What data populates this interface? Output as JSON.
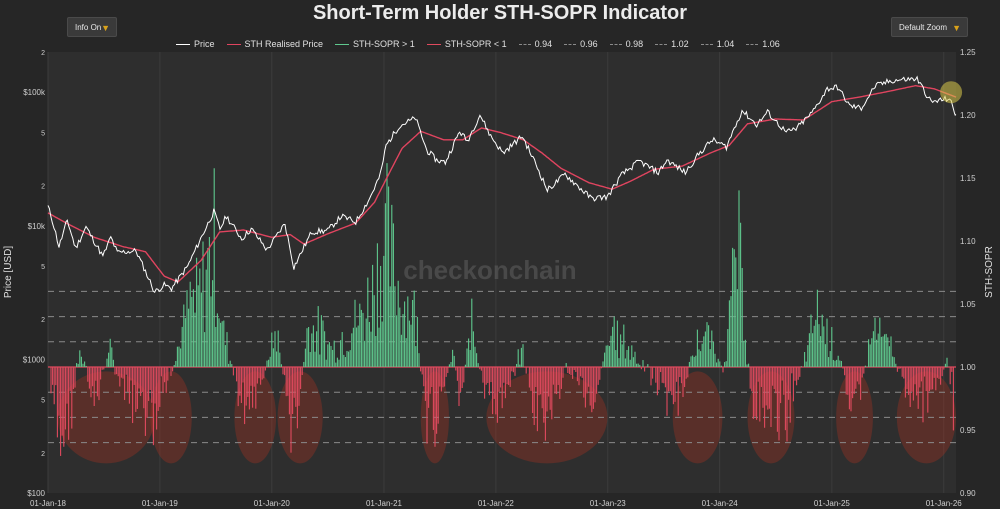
{
  "header": {
    "title": "Short-Term Holder STH-SOPR Indicator"
  },
  "controls": {
    "info_label": "Info On",
    "zoom_label": "Default Zoom"
  },
  "legend": {
    "price": "Price",
    "realised": "STH Realised Price",
    "sopr_up": "STH-SOPR > 1",
    "sopr_down": "STH-SOPR < 1",
    "levels": [
      "0.94",
      "0.96",
      "0.98",
      "1.02",
      "1.04",
      "1.06"
    ]
  },
  "colors": {
    "price": "#ffffff",
    "realised": "#e0445f",
    "sopr_up": "#5fc88e",
    "sopr_down": "#e04a5e",
    "highlight": "#c8321e",
    "latest": "#d8c84a",
    "plot_bg": "#2e2e2e"
  },
  "watermark": "checkonchain",
  "chart_data": {
    "type": "line",
    "title": "Short-Term Holder STH-SOPR Indicator",
    "x_range": [
      "2018-01-01",
      "2026-02-10"
    ],
    "x_ticks": [
      "01-Jan-18",
      "01-Jan-19",
      "01-Jan-20",
      "01-Jan-21",
      "01-Jan-22",
      "01-Jan-23",
      "01-Jan-24",
      "01-Jan-25",
      "01-Jan-26"
    ],
    "y_left": {
      "label": "Price [USD]",
      "scale": "log",
      "range": [
        100,
        200000
      ],
      "ticks": [
        {
          "v": 100,
          "t": "$100"
        },
        {
          "v": 200,
          "t": "2"
        },
        {
          "v": 500,
          "t": "5"
        },
        {
          "v": 1000,
          "t": "$1000"
        },
        {
          "v": 2000,
          "t": "2"
        },
        {
          "v": 5000,
          "t": "5"
        },
        {
          "v": 10000,
          "t": "$10k"
        },
        {
          "v": 20000,
          "t": "2"
        },
        {
          "v": 50000,
          "t": "5"
        },
        {
          "v": 100000,
          "t": "$100k"
        },
        {
          "v": 200000,
          "t": "2"
        }
      ]
    },
    "y_right": {
      "label": "STH-SOPR",
      "range": [
        0.9,
        1.25
      ],
      "ticks": [
        "0.90",
        "0.95",
        "1.00",
        "1.05",
        "1.10",
        "1.15",
        "1.20",
        "1.25"
      ]
    },
    "reference_levels": [
      0.94,
      0.96,
      0.98,
      1.0,
      1.02,
      1.04,
      1.06
    ],
    "series": [
      {
        "name": "Price",
        "points": [
          [
            "2018-01-01",
            14000
          ],
          [
            "2018-01-15",
            11000
          ],
          [
            "2018-02-06",
            7000
          ],
          [
            "2018-03-05",
            11000
          ],
          [
            "2018-04-01",
            6800
          ],
          [
            "2018-05-05",
            9800
          ],
          [
            "2018-06-29",
            5900
          ],
          [
            "2018-07-25",
            8200
          ],
          [
            "2018-08-15",
            6300
          ],
          [
            "2018-10-15",
            6500
          ],
          [
            "2018-11-20",
            4300
          ],
          [
            "2018-12-15",
            3200
          ],
          [
            "2019-01-15",
            3600
          ],
          [
            "2019-02-08",
            3400
          ],
          [
            "2019-04-02",
            5000
          ],
          [
            "2019-05-14",
            8000
          ],
          [
            "2019-06-26",
            12800
          ],
          [
            "2019-07-16",
            9500
          ],
          [
            "2019-08-06",
            11800
          ],
          [
            "2019-09-25",
            8000
          ],
          [
            "2019-10-26",
            9500
          ],
          [
            "2019-12-17",
            6600
          ],
          [
            "2020-02-13",
            10400
          ],
          [
            "2020-03-13",
            4900
          ],
          [
            "2020-05-10",
            9000
          ],
          [
            "2020-07-01",
            9200
          ],
          [
            "2020-08-15",
            11800
          ],
          [
            "2020-10-01",
            10700
          ],
          [
            "2020-11-15",
            16000
          ],
          [
            "2020-12-20",
            24000
          ],
          [
            "2021-01-08",
            40000
          ],
          [
            "2021-02-20",
            56000
          ],
          [
            "2021-04-14",
            64000
          ],
          [
            "2021-05-20",
            37000
          ],
          [
            "2021-06-22",
            31000
          ],
          [
            "2021-07-20",
            29800
          ],
          [
            "2021-09-05",
            51000
          ],
          [
            "2021-09-30",
            43000
          ],
          [
            "2021-11-10",
            68000
          ],
          [
            "2021-12-15",
            47000
          ],
          [
            "2022-01-24",
            35000
          ],
          [
            "2022-03-28",
            47000
          ],
          [
            "2022-05-12",
            28800
          ],
          [
            "2022-06-18",
            18500
          ],
          [
            "2022-08-15",
            24300
          ],
          [
            "2022-10-01",
            19300
          ],
          [
            "2022-11-09",
            16000
          ],
          [
            "2022-12-31",
            16500
          ],
          [
            "2023-02-15",
            24000
          ],
          [
            "2023-04-14",
            30500
          ],
          [
            "2023-06-15",
            25000
          ],
          [
            "2023-07-13",
            31000
          ],
          [
            "2023-09-11",
            25000
          ],
          [
            "2023-10-25",
            34500
          ],
          [
            "2023-12-08",
            44000
          ],
          [
            "2024-01-23",
            39000
          ],
          [
            "2024-03-14",
            73000
          ],
          [
            "2024-05-01",
            57000
          ],
          [
            "2024-06-05",
            71000
          ],
          [
            "2024-08-05",
            50000
          ],
          [
            "2024-09-06",
            53000
          ],
          [
            "2024-10-28",
            70000
          ],
          [
            "2024-12-17",
            106000
          ],
          [
            "2025-01-20",
            109000
          ],
          [
            "2025-02-28",
            79000
          ],
          [
            "2025-04-07",
            76000
          ],
          [
            "2025-05-22",
            111000
          ],
          [
            "2025-07-14",
            122000
          ],
          [
            "2025-08-14",
            124000
          ],
          [
            "2025-10-06",
            126000
          ],
          [
            "2025-11-21",
            84000
          ],
          [
            "2025-12-31",
            88000
          ],
          [
            "2026-01-20",
            90000
          ],
          [
            "2026-02-05",
            70000
          ],
          [
            "2026-02-10",
            68000
          ]
        ]
      },
      {
        "name": "STH Realised Price",
        "points": [
          [
            "2018-01-01",
            12500
          ],
          [
            "2018-03-01",
            10500
          ],
          [
            "2018-06-01",
            8200
          ],
          [
            "2018-09-01",
            7000
          ],
          [
            "2018-11-15",
            6400
          ],
          [
            "2019-01-15",
            4200
          ],
          [
            "2019-03-01",
            3800
          ],
          [
            "2019-05-15",
            5500
          ],
          [
            "2019-07-15",
            9000
          ],
          [
            "2019-10-01",
            9300
          ],
          [
            "2020-01-01",
            8200
          ],
          [
            "2020-03-01",
            8600
          ],
          [
            "2020-04-15",
            7300
          ],
          [
            "2020-07-01",
            8700
          ],
          [
            "2020-10-01",
            10500
          ],
          [
            "2020-12-01",
            15000
          ],
          [
            "2021-01-15",
            24000
          ],
          [
            "2021-03-01",
            38000
          ],
          [
            "2021-05-01",
            51000
          ],
          [
            "2021-07-15",
            44000
          ],
          [
            "2021-09-15",
            44000
          ],
          [
            "2021-11-15",
            54000
          ],
          [
            "2022-01-15",
            50000
          ],
          [
            "2022-04-01",
            44000
          ],
          [
            "2022-06-01",
            35000
          ],
          [
            "2022-08-01",
            27000
          ],
          [
            "2022-11-01",
            21000
          ],
          [
            "2023-01-15",
            18800
          ],
          [
            "2023-03-15",
            21500
          ],
          [
            "2023-06-01",
            26500
          ],
          [
            "2023-09-01",
            28000
          ],
          [
            "2023-12-01",
            35000
          ],
          [
            "2024-02-01",
            40000
          ],
          [
            "2024-04-01",
            58000
          ],
          [
            "2024-07-01",
            63000
          ],
          [
            "2024-10-01",
            62000
          ],
          [
            "2025-01-01",
            85000
          ],
          [
            "2025-04-01",
            92000
          ],
          [
            "2025-07-01",
            101000
          ],
          [
            "2025-10-01",
            112000
          ],
          [
            "2025-12-01",
            106000
          ],
          [
            "2026-02-10",
            92000
          ]
        ]
      },
      {
        "name": "STH-SOPR",
        "points": [
          [
            "2018-01-15",
            0.97
          ],
          [
            "2018-02-06",
            0.92
          ],
          [
            "2018-03-15",
            0.95
          ],
          [
            "2018-04-15",
            1.02
          ],
          [
            "2018-06-01",
            0.96
          ],
          [
            "2018-07-20",
            1.02
          ],
          [
            "2018-09-01",
            0.97
          ],
          [
            "2018-11-20",
            0.95
          ],
          [
            "2018-12-15",
            0.94
          ],
          [
            "2019-02-15",
            1.0
          ],
          [
            "2019-04-02",
            1.06
          ],
          [
            "2019-05-15",
            1.08
          ],
          [
            "2019-06-26",
            1.14
          ],
          [
            "2019-07-20",
            1.05
          ],
          [
            "2019-09-25",
            0.96
          ],
          [
            "2019-11-20",
            0.97
          ],
          [
            "2020-01-15",
            1.04
          ],
          [
            "2020-03-13",
            0.92
          ],
          [
            "2020-04-30",
            1.05
          ],
          [
            "2020-07-20",
            1.02
          ],
          [
            "2020-11-01",
            1.06
          ],
          [
            "2021-01-08",
            1.14
          ],
          [
            "2021-02-20",
            1.08
          ],
          [
            "2021-04-14",
            1.06
          ],
          [
            "2021-05-19",
            0.93
          ],
          [
            "2021-06-22",
            0.95
          ],
          [
            "2021-08-15",
            1.02
          ],
          [
            "2021-09-07",
            0.96
          ],
          [
            "2021-10-15",
            1.05
          ],
          [
            "2021-12-04",
            0.96
          ],
          [
            "2022-01-22",
            0.96
          ],
          [
            "2022-03-28",
            1.02
          ],
          [
            "2022-05-09",
            0.95
          ],
          [
            "2022-06-18",
            0.94
          ],
          [
            "2022-08-15",
            1.0
          ],
          [
            "2022-11-09",
            0.96
          ],
          [
            "2023-01-15",
            1.04
          ],
          [
            "2023-03-15",
            1.02
          ],
          [
            "2023-06-15",
            0.98
          ],
          [
            "2023-08-17",
            0.96
          ],
          [
            "2023-10-24",
            1.03
          ],
          [
            "2023-12-05",
            1.03
          ],
          [
            "2024-01-10",
            0.99
          ],
          [
            "2024-03-01",
            1.13
          ],
          [
            "2024-04-15",
            0.96
          ],
          [
            "2024-08-05",
            0.95
          ],
          [
            "2024-10-15",
            1.02
          ],
          [
            "2024-11-12",
            1.06
          ],
          [
            "2025-01-15",
            1.02
          ],
          [
            "2025-03-01",
            0.97
          ],
          [
            "2025-04-07",
            0.98
          ],
          [
            "2025-05-15",
            1.04
          ],
          [
            "2025-07-14",
            1.02
          ],
          [
            "2025-08-25",
            0.98
          ],
          [
            "2025-10-10",
            0.96
          ],
          [
            "2025-11-21",
            0.96
          ],
          [
            "2026-01-15",
            1.01
          ],
          [
            "2026-02-05",
            0.95
          ],
          [
            "2026-02-10",
            0.99
          ]
        ]
      }
    ],
    "highlighted_periods": [
      [
        "2018-02-01",
        "2018-12-15"
      ],
      [
        "2018-12-01",
        "2019-04-15"
      ],
      [
        "2019-09-01",
        "2020-01-15"
      ],
      [
        "2020-01-20",
        "2020-06-15"
      ],
      [
        "2021-05-01",
        "2021-08-01"
      ],
      [
        "2021-12-01",
        "2022-12-31"
      ],
      [
        "2023-08-01",
        "2024-01-10"
      ],
      [
        "2024-04-01",
        "2024-09-01"
      ],
      [
        "2025-01-15",
        "2025-05-15"
      ],
      [
        "2025-08-01",
        "2026-02-10"
      ]
    ],
    "latest_marker": "2026-01-25"
  }
}
